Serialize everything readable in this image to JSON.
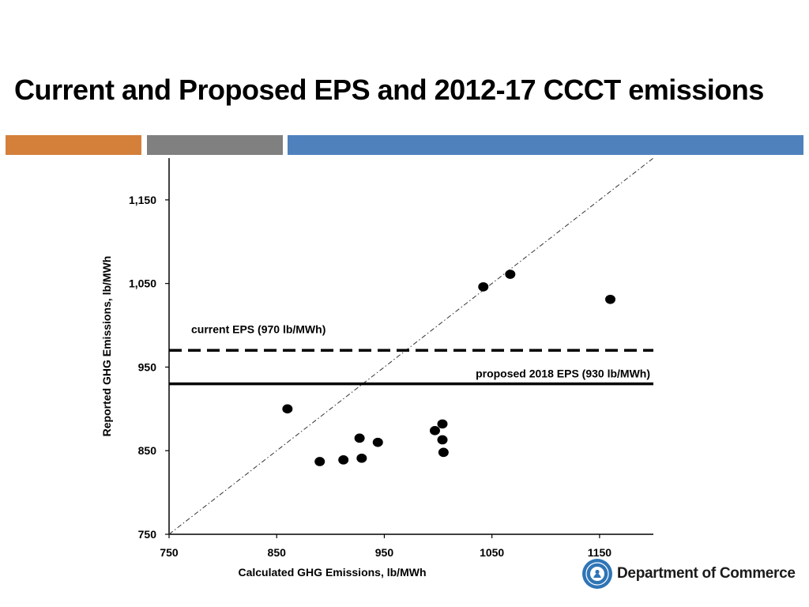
{
  "slide": {
    "title": "Current and Proposed EPS and 2012-17 CCCT emissions",
    "accent_colors": [
      "#D4803A",
      "#808080",
      "#4F81BD"
    ]
  },
  "footer": {
    "org_name": "Department of Commerce",
    "seal_icon": "washington-state-seal-icon",
    "seal_color": "#2E75B6"
  },
  "chart_data": {
    "type": "scatter",
    "xlabel": "Calculated GHG Emissions, lb/MWh",
    "ylabel": "Reported GHG Emissions, lb/MWh",
    "xlim": [
      750,
      1200
    ],
    "ylim": [
      750,
      1200
    ],
    "x_ticks": [
      750,
      850,
      950,
      1050,
      1150
    ],
    "x_tick_labels": [
      "750",
      "850",
      "950",
      "1050",
      "1150"
    ],
    "y_ticks": [
      750,
      850,
      950,
      1050,
      1150
    ],
    "y_tick_labels": [
      "750",
      "850",
      "950",
      "1,050",
      "1,150"
    ],
    "grid": false,
    "points": [
      {
        "x": 860,
        "y": 900
      },
      {
        "x": 890,
        "y": 837
      },
      {
        "x": 912,
        "y": 839
      },
      {
        "x": 927,
        "y": 865
      },
      {
        "x": 929,
        "y": 841
      },
      {
        "x": 944,
        "y": 860
      },
      {
        "x": 997,
        "y": 874
      },
      {
        "x": 1004,
        "y": 882
      },
      {
        "x": 1004,
        "y": 863
      },
      {
        "x": 1005,
        "y": 848
      },
      {
        "x": 1042,
        "y": 1046
      },
      {
        "x": 1067,
        "y": 1061
      },
      {
        "x": 1160,
        "y": 1031
      }
    ],
    "reference_lines": [
      {
        "kind": "diagonal",
        "style": "dash-dot",
        "description": "y = x"
      },
      {
        "kind": "horizontal",
        "y": 970,
        "style": "dashed",
        "label": "current EPS (970 lb/MWh)",
        "label_position": "above-left"
      },
      {
        "kind": "horizontal",
        "y": 930,
        "style": "solid",
        "label": "proposed 2018 EPS (930 lb/MWh)",
        "label_position": "above-right"
      }
    ]
  }
}
